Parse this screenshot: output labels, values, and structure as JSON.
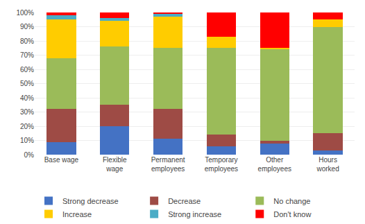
{
  "chart_data": {
    "type": "bar",
    "stacked": true,
    "categories": [
      "Base wage",
      "Flexible\nwage",
      "Permanent\nemployees",
      "Temporary\nemployees",
      "Other\nemployees",
      "Hours\nworked"
    ],
    "series": [
      {
        "name": "Strong decrease",
        "color": "#4472C4",
        "values": [
          9,
          20,
          11,
          6,
          8,
          3
        ]
      },
      {
        "name": "Decrease",
        "color": "#9E4B45",
        "values": [
          23,
          15,
          21,
          8,
          2,
          12
        ]
      },
      {
        "name": "No change",
        "color": "#9BBB59",
        "values": [
          36,
          41,
          43,
          61,
          64,
          75
        ]
      },
      {
        "name": "Increase",
        "color": "#FFCC00",
        "values": [
          27,
          18,
          22,
          8,
          1,
          5
        ]
      },
      {
        "name": "Strong increase",
        "color": "#4BACC6",
        "values": [
          3,
          2,
          2,
          0,
          0,
          0
        ]
      },
      {
        "name": "Don't know",
        "color": "#FF0000",
        "values": [
          2,
          4,
          1,
          17,
          25,
          5
        ]
      }
    ],
    "ylim": [
      0,
      100
    ],
    "yticks": [
      {
        "value": 0,
        "label": "0%"
      },
      {
        "value": 10,
        "label": "10%"
      },
      {
        "value": 20,
        "label": "20%"
      },
      {
        "value": 30,
        "label": "30%"
      },
      {
        "value": 40,
        "label": "40%"
      },
      {
        "value": 50,
        "label": "50%"
      },
      {
        "value": 60,
        "label": "60%"
      },
      {
        "value": 70,
        "label": "70%"
      },
      {
        "value": 80,
        "label": "80%"
      },
      {
        "value": 90,
        "label": "90%"
      },
      {
        "value": 100,
        "label": "100%"
      }
    ],
    "grid": true,
    "legend": "bottom"
  }
}
